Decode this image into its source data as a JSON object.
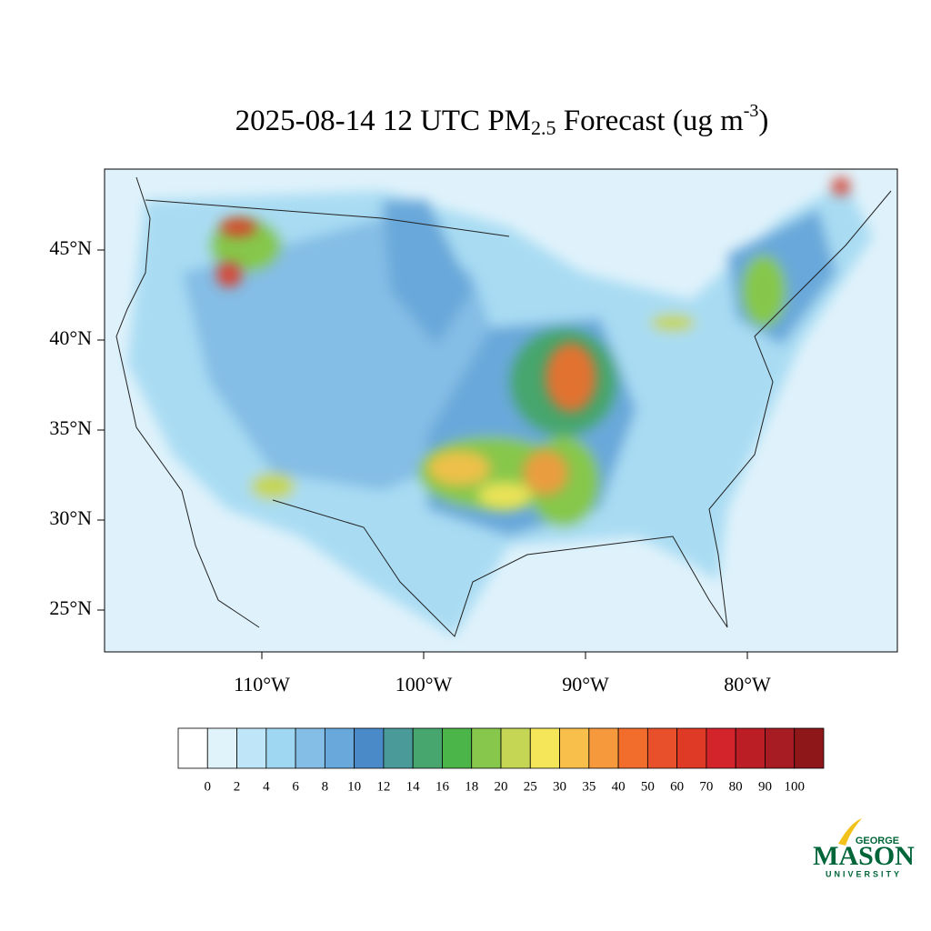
{
  "title": {
    "main": "2025-08-14 12 UTC PM",
    "sub": "2.5",
    "middle": " Forecast (ug m",
    "sup": "-3",
    "end": ")"
  },
  "map": {
    "lat_ticks": [
      {
        "value": 45,
        "label": "45°N"
      },
      {
        "value": 40,
        "label": "40°N"
      },
      {
        "value": 35,
        "label": "35°N"
      },
      {
        "value": 30,
        "label": "30°N"
      },
      {
        "value": 25,
        "label": "25°N"
      }
    ],
    "lon_ticks": [
      {
        "value": -110,
        "label": "110°W"
      },
      {
        "value": -100,
        "label": "100°W"
      },
      {
        "value": -90,
        "label": "90°W"
      },
      {
        "value": -80,
        "label": "80°W"
      }
    ]
  },
  "colorbar": {
    "levels": [
      0,
      2,
      4,
      6,
      8,
      10,
      12,
      14,
      16,
      18,
      20,
      25,
      30,
      35,
      40,
      50,
      60,
      70,
      80,
      90,
      100
    ],
    "colors": [
      "#ffffff",
      "#e0f3fb",
      "#bfe6f8",
      "#9fd6f2",
      "#84bde5",
      "#69a8da",
      "#4b8ac8",
      "#4a9a9a",
      "#47a66d",
      "#4bb54a",
      "#86c74c",
      "#c5d655",
      "#f5e559",
      "#f8c04a",
      "#f6993c",
      "#f26d2c",
      "#e8502b",
      "#de3a26",
      "#d3232b",
      "#bc1e26",
      "#a71b22",
      "#8e1719"
    ]
  },
  "logo": {
    "top": "GEORGE",
    "main": "MASON",
    "bottom": "UNIVERSITY"
  }
}
